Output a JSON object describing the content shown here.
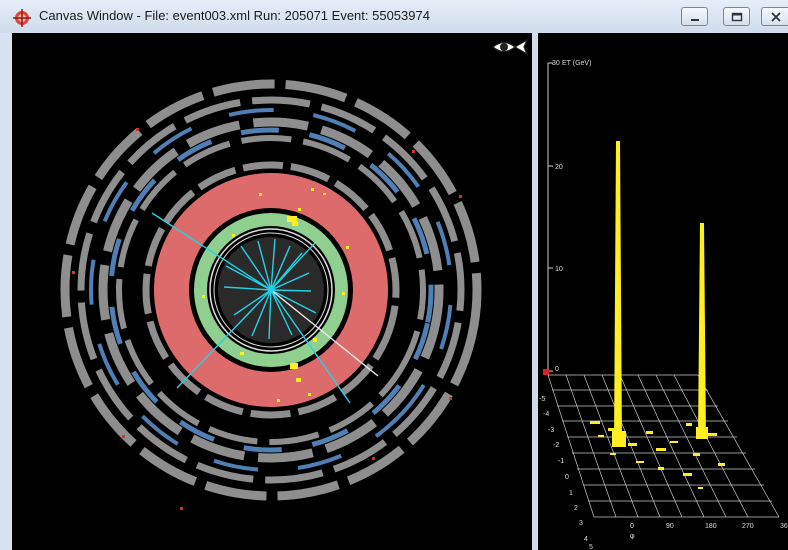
{
  "window": {
    "title": "Canvas Window -  File: event003.xml  Run: 205071  Event: 55053974",
    "buttons": [
      "minimize",
      "maximize",
      "close"
    ]
  },
  "detector_view": {
    "icon": "eye-icon",
    "colors": {
      "background": "#000000",
      "calorimeter_outer": "#de6b6b",
      "calorimeter_inner": "#8fcf8f",
      "tracker": "#2a2a2a",
      "muon_chamber": "#8e8e8e",
      "muon_blue": "#4f7fb4",
      "tracks": "#22d3e6",
      "hits": "#ffee22"
    }
  },
  "lego_plot": {
    "axis_title": "ET (GeV)",
    "z_ticks": [
      "30",
      "20",
      "10",
      "0"
    ],
    "eta_ticks": [
      "-5",
      "-4",
      "-3",
      "-2",
      "-1",
      "0",
      "1",
      "2",
      "3",
      "4",
      "5"
    ],
    "phi_ticks": [
      "0",
      "90",
      "180",
      "270",
      "36"
    ],
    "phi_label": "φ"
  }
}
